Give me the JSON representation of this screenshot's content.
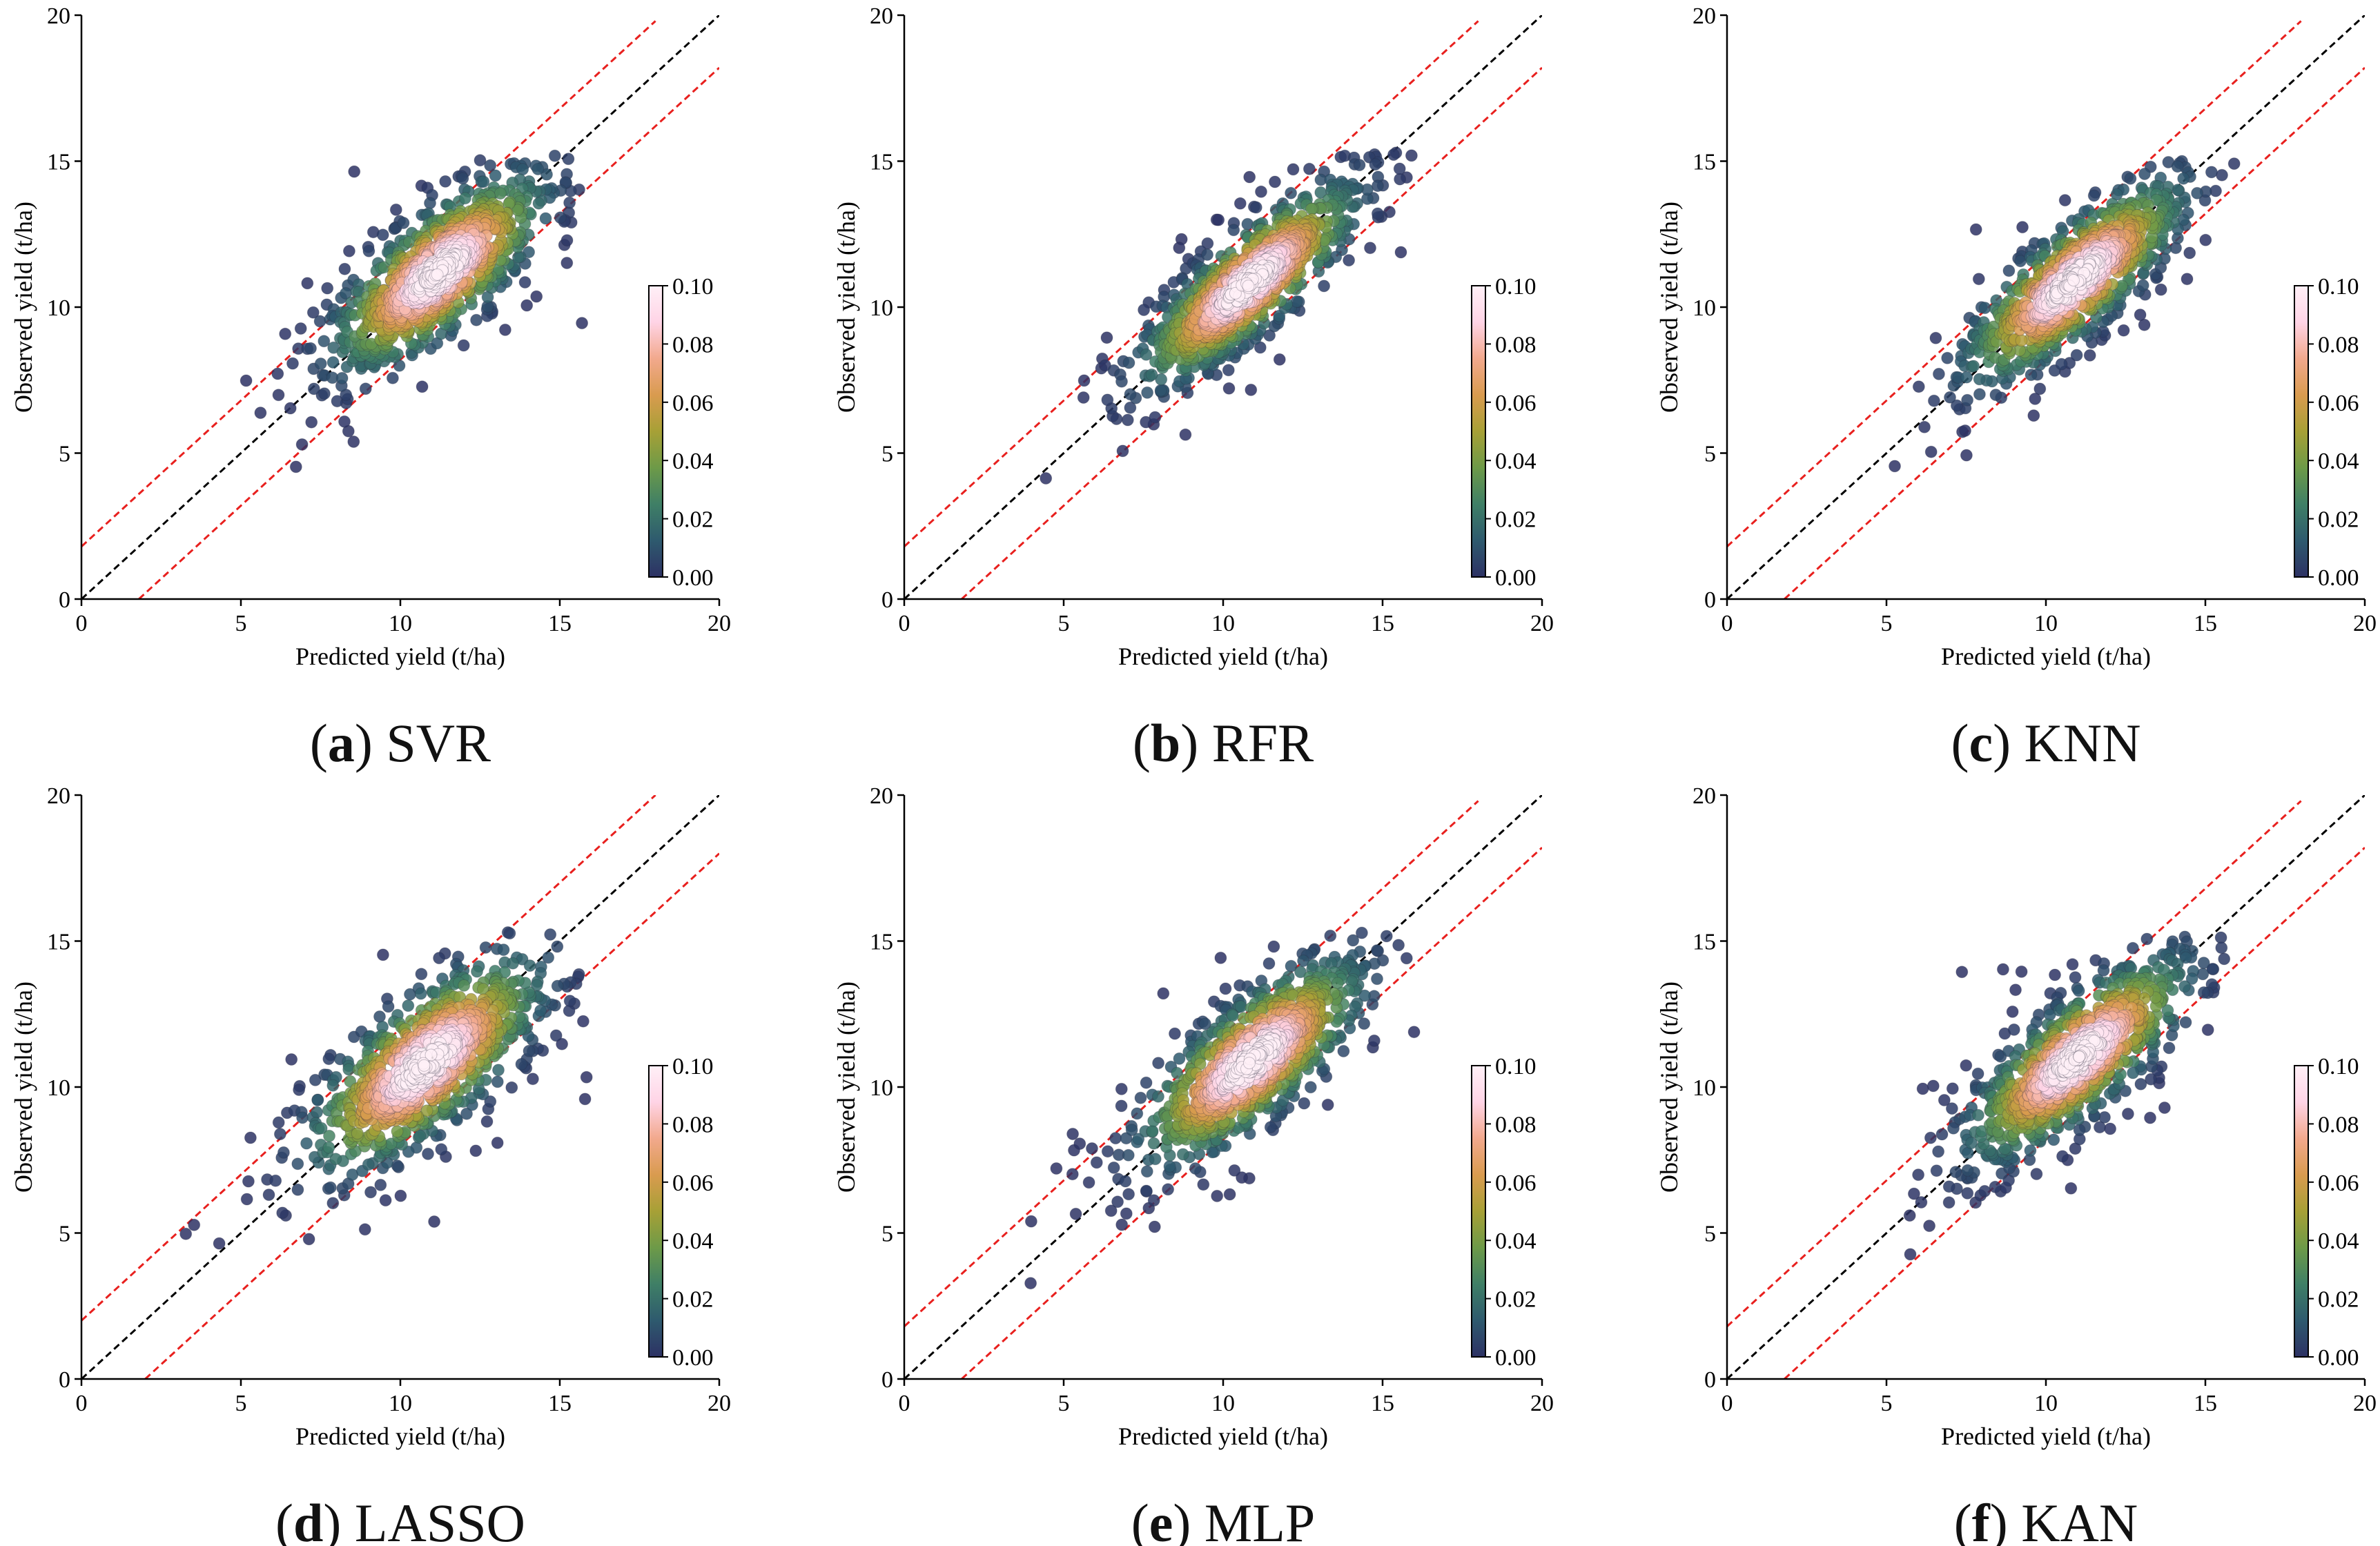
{
  "figure": {
    "axis": {
      "xlim": [
        0,
        20
      ],
      "ylim": [
        0,
        20
      ],
      "ticks": [
        0,
        5,
        10,
        15,
        20
      ]
    },
    "colorbar": {
      "min": 0.0,
      "max": 0.1,
      "ticks": [
        "0.00",
        "0.02",
        "0.04",
        "0.06",
        "0.08",
        "0.10"
      ],
      "colormap": [
        "#2d3164",
        "#2e5a6e",
        "#3f7f66",
        "#6d9a48",
        "#a7a036",
        "#d99b4f",
        "#f2a98d",
        "#ffd4e6",
        "#fff0f7"
      ]
    },
    "colors": {
      "identity_line": "#000000",
      "bound_lines": "#e8201e"
    }
  },
  "chart_data": [
    {
      "type": "scatter",
      "panel_letter": "a",
      "model": "SVR",
      "xlabel": "Predicted yield (t/ha)",
      "ylabel": "Observed yield (t/ha)",
      "xlim": [
        0,
        20
      ],
      "ylim": [
        0,
        20
      ],
      "center": 11.2,
      "spread_major": 2.2,
      "spread_minor": 0.85,
      "bounds_offset": 1.8,
      "density_range": [
        0.0,
        0.1
      ],
      "n_points": 900
    },
    {
      "type": "scatter",
      "panel_letter": "b",
      "model": "RFR",
      "xlabel": "Predicted yield (t/ha)",
      "ylabel": "Observed yield (t/ha)",
      "xlim": [
        0,
        20
      ],
      "ylim": [
        0,
        20
      ],
      "center": 10.8,
      "spread_major": 2.3,
      "spread_minor": 0.7,
      "bounds_offset": 1.8,
      "density_range": [
        0.0,
        0.1
      ],
      "n_points": 900
    },
    {
      "type": "scatter",
      "panel_letter": "c",
      "model": "KNN",
      "xlabel": "Predicted yield (t/ha)",
      "ylabel": "Observed yield (t/ha)",
      "xlim": [
        0,
        20
      ],
      "ylim": [
        0,
        20
      ],
      "center": 10.9,
      "spread_major": 2.3,
      "spread_minor": 0.75,
      "bounds_offset": 1.8,
      "density_range": [
        0.0,
        0.1
      ],
      "n_points": 900
    },
    {
      "type": "scatter",
      "panel_letter": "d",
      "model": "LASSO",
      "xlabel": "Predicted yield (t/ha)",
      "ylabel": "Observed yield (t/ha)",
      "xlim": [
        0,
        20
      ],
      "ylim": [
        0,
        20
      ],
      "center": 10.8,
      "spread_major": 2.4,
      "spread_minor": 0.95,
      "bounds_offset": 2.0,
      "density_range": [
        0.0,
        0.1
      ],
      "n_points": 900
    },
    {
      "type": "scatter",
      "panel_letter": "e",
      "model": "MLP",
      "xlabel": "Predicted yield (t/ha)",
      "ylabel": "Observed yield (t/ha)",
      "xlim": [
        0,
        20
      ],
      "ylim": [
        0,
        20
      ],
      "center": 10.9,
      "spread_major": 2.3,
      "spread_minor": 0.85,
      "bounds_offset": 1.8,
      "density_range": [
        0.0,
        0.1
      ],
      "n_points": 900
    },
    {
      "type": "scatter",
      "panel_letter": "f",
      "model": "KAN",
      "xlabel": "Predicted yield (t/ha)",
      "ylabel": "Observed yield (t/ha)",
      "xlim": [
        0,
        20
      ],
      "ylim": [
        0,
        20
      ],
      "center": 11.0,
      "spread_major": 2.3,
      "spread_minor": 0.8,
      "bounds_offset": 1.8,
      "density_range": [
        0.0,
        0.1
      ],
      "n_points": 900
    }
  ]
}
